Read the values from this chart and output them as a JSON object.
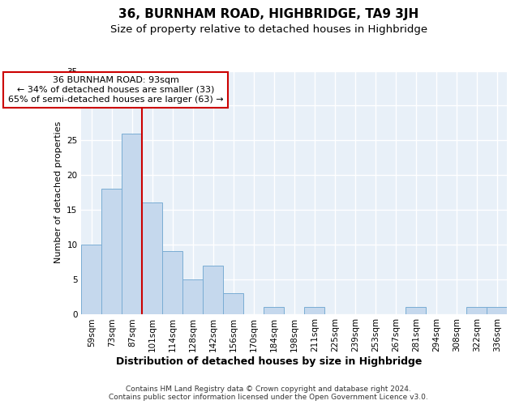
{
  "title": "36, BURNHAM ROAD, HIGHBRIDGE, TA9 3JH",
  "subtitle": "Size of property relative to detached houses in Highbridge",
  "xlabel": "Distribution of detached houses by size in Highbridge",
  "ylabel": "Number of detached properties",
  "categories": [
    "59sqm",
    "73sqm",
    "87sqm",
    "101sqm",
    "114sqm",
    "128sqm",
    "142sqm",
    "156sqm",
    "170sqm",
    "184sqm",
    "198sqm",
    "211sqm",
    "225sqm",
    "239sqm",
    "253sqm",
    "267sqm",
    "281sqm",
    "294sqm",
    "308sqm",
    "322sqm",
    "336sqm"
  ],
  "values": [
    10,
    18,
    26,
    16,
    9,
    5,
    7,
    3,
    0,
    1,
    0,
    1,
    0,
    0,
    0,
    0,
    1,
    0,
    0,
    1,
    1
  ],
  "bar_color": "#c5d8ed",
  "bar_edge_color": "#7aadd4",
  "background_color": "#e8f0f8",
  "grid_color": "#ffffff",
  "red_line_x": 2.5,
  "red_line_color": "#cc0000",
  "annotation_text": "36 BURNHAM ROAD: 93sqm\n← 34% of detached houses are smaller (33)\n65% of semi-detached houses are larger (63) →",
  "annotation_box_color": "#ffffff",
  "annotation_box_edge_color": "#cc0000",
  "ylim": [
    0,
    35
  ],
  "yticks": [
    0,
    5,
    10,
    15,
    20,
    25,
    30,
    35
  ],
  "footer_text": "Contains HM Land Registry data © Crown copyright and database right 2024.\nContains public sector information licensed under the Open Government Licence v3.0.",
  "title_fontsize": 11,
  "subtitle_fontsize": 9.5,
  "ylabel_fontsize": 8,
  "xlabel_fontsize": 9,
  "tick_fontsize": 7.5,
  "annotation_fontsize": 8,
  "footer_fontsize": 6.5
}
